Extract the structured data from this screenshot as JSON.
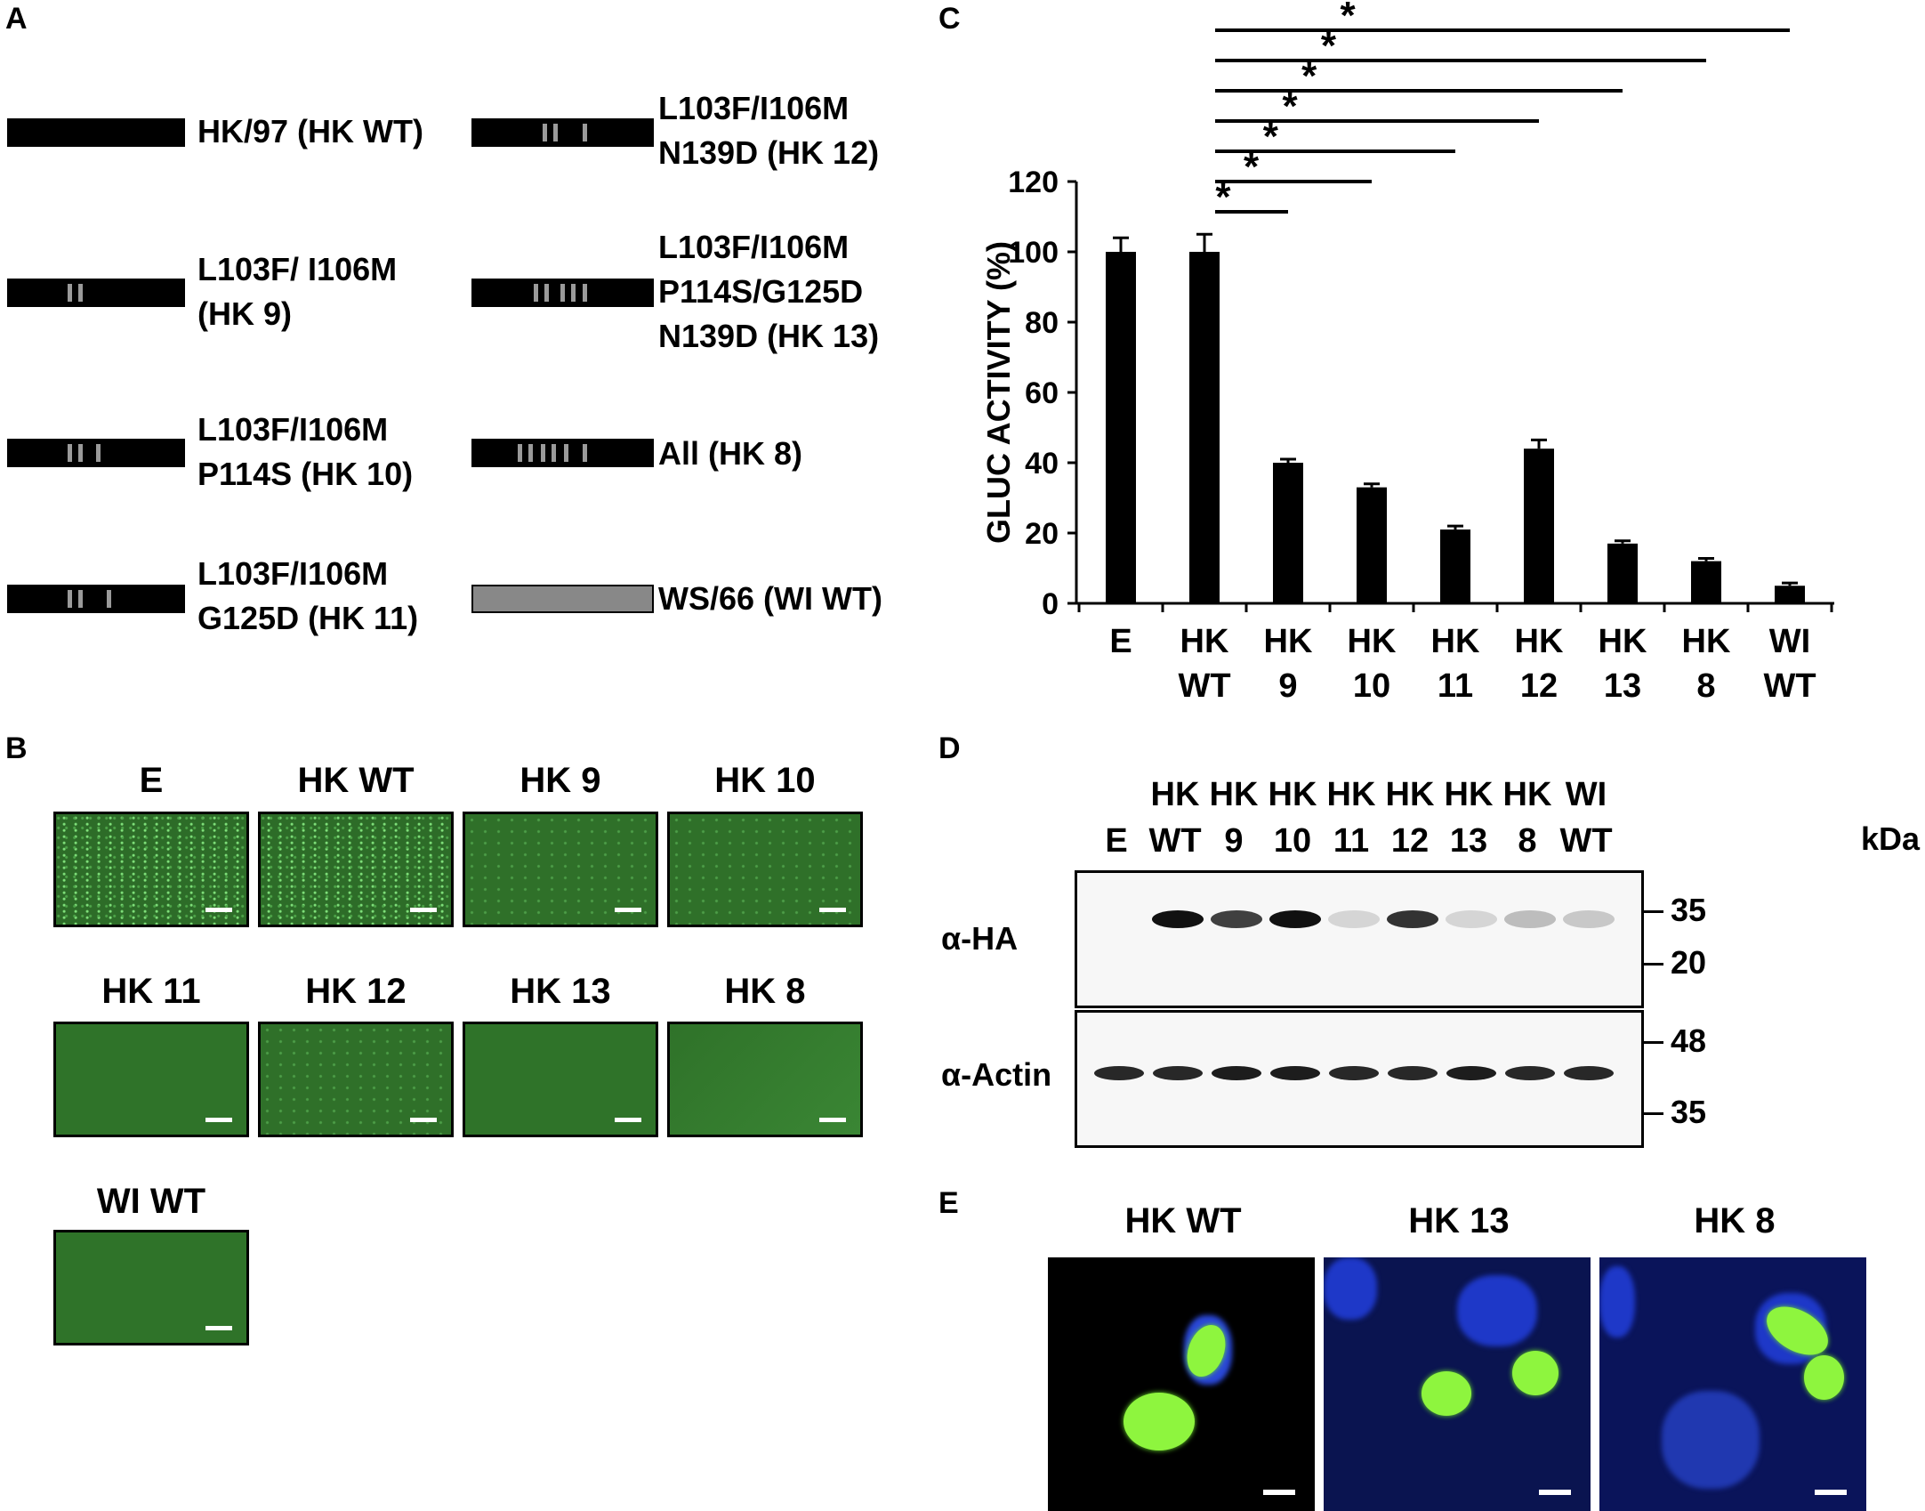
{
  "panels": {
    "a": "A",
    "b": "B",
    "c": "C",
    "d": "D",
    "e": "E"
  },
  "panel_a": {
    "constructs": [
      {
        "label_lines": [
          "HK/97 (HK WT)"
        ]
      },
      {
        "label_lines": [
          "L103F/ I106M",
          "(HK 9)"
        ]
      },
      {
        "label_lines": [
          "L103F/I106M",
          "P114S (HK 10)"
        ]
      },
      {
        "label_lines": [
          "L103F/I106M",
          "G125D (HK 11)"
        ]
      },
      {
        "label_lines": [
          "L103F/I106M",
          "N139D (HK 12)"
        ]
      },
      {
        "label_lines": [
          "L103F/I106M",
          "P114S/G125D",
          "N139D (HK 13)"
        ]
      },
      {
        "label_lines": [
          "All (HK 8)"
        ]
      },
      {
        "label_lines": [
          "WS/66 (WI WT)"
        ]
      }
    ],
    "colors": {
      "hk_bar": "#000000",
      "mutation_stripe": "#9a9a9a",
      "wi_bar": "#888888"
    }
  },
  "panel_b": {
    "images": [
      "E",
      "HK WT",
      "HK 9",
      "HK 10",
      "HK 11",
      "HK 12",
      "HK 13",
      "HK 8",
      "WI WT"
    ]
  },
  "chart_data": {
    "type": "bar",
    "ylabel": "GLUC ACTIVITY (%)",
    "ylim": [
      0,
      120
    ],
    "yticks": [
      0,
      20,
      40,
      60,
      80,
      100,
      120
    ],
    "categories": [
      [
        "E"
      ],
      [
        "HK",
        "WT"
      ],
      [
        "HK",
        "9"
      ],
      [
        "HK",
        "10"
      ],
      [
        "HK",
        "11"
      ],
      [
        "HK",
        "12"
      ],
      [
        "HK",
        "13"
      ],
      [
        "HK",
        "8"
      ],
      [
        "WI",
        "WT"
      ]
    ],
    "values": [
      100,
      100,
      40,
      33,
      21,
      44,
      17,
      12,
      5
    ],
    "errors": [
      4,
      5,
      1,
      1,
      1,
      2.5,
      0.8,
      0.8,
      0.8
    ],
    "significance": [
      {
        "from": 1,
        "to": 2,
        "mark": "*"
      },
      {
        "from": 1,
        "to": 3,
        "mark": "*"
      },
      {
        "from": 1,
        "to": 4,
        "mark": "*"
      },
      {
        "from": 1,
        "to": 5,
        "mark": "*"
      },
      {
        "from": 1,
        "to": 6,
        "mark": "*"
      },
      {
        "from": 1,
        "to": 7,
        "mark": "*"
      },
      {
        "from": 1,
        "to": 8,
        "mark": "*"
      }
    ],
    "grid": false,
    "bar_color": "#000000"
  },
  "panel_d": {
    "lanes": [
      [
        "",
        "E"
      ],
      [
        "HK",
        "WT"
      ],
      [
        "HK",
        "9"
      ],
      [
        "HK",
        "10"
      ],
      [
        "HK",
        "11"
      ],
      [
        "HK",
        "12"
      ],
      [
        "HK",
        "13"
      ],
      [
        "HK",
        "8"
      ],
      [
        "WI",
        "WT"
      ]
    ],
    "kda_label": "kDa",
    "blots": [
      {
        "label": "α-HA",
        "markers": [
          "35",
          "20"
        ],
        "band_intensity": [
          0,
          1,
          0.8,
          1,
          0.1,
          0.85,
          0.1,
          0.25,
          0.2
        ]
      },
      {
        "label": "α-Actin",
        "markers": [
          "48",
          "35"
        ],
        "band_intensity": [
          0.9,
          0.9,
          0.95,
          0.95,
          0.9,
          0.9,
          0.95,
          0.9,
          0.9
        ]
      }
    ]
  },
  "panel_e": {
    "images": [
      "HK WT",
      "HK 13",
      "HK 8"
    ]
  }
}
